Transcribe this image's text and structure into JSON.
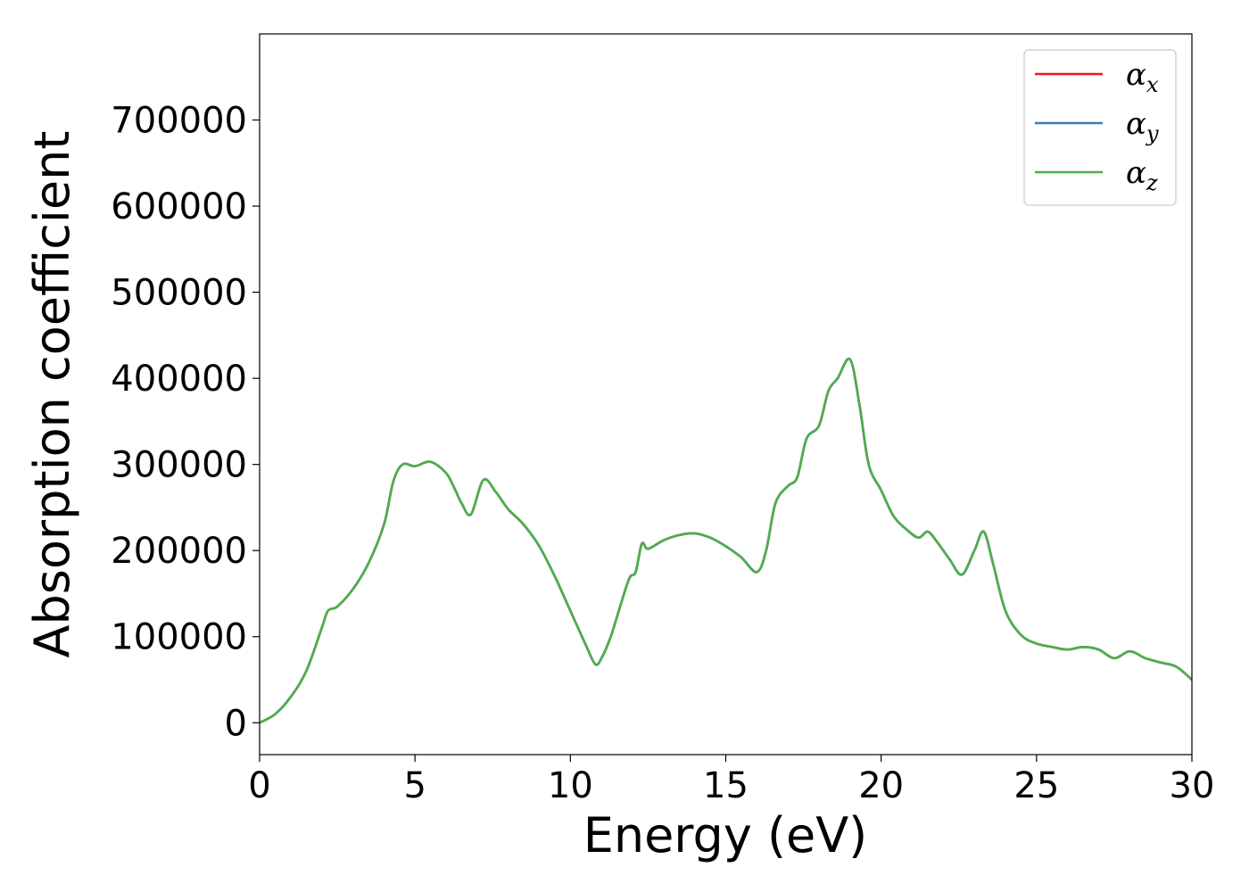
{
  "chart_data": {
    "type": "line",
    "xlabel": "Energy (eV)",
    "ylabel": "Absorption coefficient",
    "xlim": [
      0,
      30
    ],
    "ylim": [
      -37000,
      800000
    ],
    "xticks": [
      "0",
      "5",
      "10",
      "15",
      "20",
      "25",
      "30"
    ],
    "yticks": [
      "0",
      "100000",
      "200000",
      "300000",
      "400000",
      "500000",
      "600000",
      "700000"
    ],
    "grid": false,
    "legend_position": "top-right",
    "x": [
      0,
      0.5,
      1,
      1.5,
      2,
      2.2,
      2.5,
      3,
      3.5,
      4,
      4.3,
      4.6,
      5,
      5.5,
      6,
      6.3,
      6.5,
      6.8,
      7.2,
      7.6,
      8,
      8.5,
      9,
      9.5,
      10,
      10.5,
      10.8,
      11,
      11.3,
      11.6,
      11.9,
      12.1,
      12.3,
      12.5,
      13,
      13.5,
      14,
      14.5,
      15,
      15.5,
      16,
      16.3,
      16.6,
      17,
      17.3,
      17.6,
      18,
      18.3,
      18.6,
      19,
      19.3,
      19.6,
      20,
      20.4,
      20.8,
      21.2,
      21.5,
      21.8,
      22.2,
      22.6,
      23,
      23.3,
      23.6,
      24,
      24.5,
      25,
      25.5,
      26,
      26.5,
      27,
      27.5,
      28,
      28.5,
      29,
      29.5,
      30
    ],
    "series": [
      {
        "name": "αx",
        "color": "#e41a1c",
        "values": [
          0,
          10000,
          30000,
          60000,
          110000,
          130000,
          135000,
          155000,
          185000,
          230000,
          280000,
          300000,
          298000,
          303000,
          290000,
          270000,
          255000,
          242000,
          282000,
          268000,
          248000,
          230000,
          205000,
          170000,
          130000,
          90000,
          68000,
          75000,
          100000,
          135000,
          168000,
          175000,
          208000,
          202000,
          212000,
          218000,
          220000,
          215000,
          205000,
          192000,
          175000,
          200000,
          255000,
          275000,
          285000,
          330000,
          345000,
          385000,
          400000,
          422000,
          370000,
          300000,
          270000,
          240000,
          225000,
          215000,
          222000,
          210000,
          190000,
          172000,
          200000,
          222000,
          185000,
          130000,
          102000,
          92000,
          88000,
          85000,
          88000,
          85000,
          75000,
          83000,
          75000,
          70000,
          65000,
          50000
        ]
      },
      {
        "name": "αy",
        "color": "#377eb8",
        "values": [
          0,
          10000,
          30000,
          60000,
          110000,
          130000,
          135000,
          155000,
          185000,
          230000,
          280000,
          300000,
          298000,
          303000,
          290000,
          270000,
          255000,
          242000,
          282000,
          268000,
          248000,
          230000,
          205000,
          170000,
          130000,
          90000,
          68000,
          75000,
          100000,
          135000,
          168000,
          175000,
          208000,
          202000,
          212000,
          218000,
          220000,
          215000,
          205000,
          192000,
          175000,
          200000,
          255000,
          275000,
          285000,
          330000,
          345000,
          385000,
          400000,
          422000,
          370000,
          300000,
          270000,
          240000,
          225000,
          215000,
          222000,
          210000,
          190000,
          172000,
          200000,
          222000,
          185000,
          130000,
          102000,
          92000,
          88000,
          85000,
          88000,
          85000,
          75000,
          83000,
          75000,
          70000,
          65000,
          50000
        ]
      },
      {
        "name": "αz",
        "color": "#4daf4a",
        "values": [
          0,
          10000,
          30000,
          60000,
          110000,
          130000,
          135000,
          155000,
          185000,
          230000,
          280000,
          300000,
          298000,
          303000,
          290000,
          270000,
          255000,
          242000,
          282000,
          268000,
          248000,
          230000,
          205000,
          170000,
          130000,
          90000,
          68000,
          75000,
          100000,
          135000,
          168000,
          175000,
          208000,
          202000,
          212000,
          218000,
          220000,
          215000,
          205000,
          192000,
          175000,
          200000,
          255000,
          275000,
          285000,
          330000,
          345000,
          385000,
          400000,
          422000,
          370000,
          300000,
          270000,
          240000,
          225000,
          215000,
          222000,
          210000,
          190000,
          172000,
          200000,
          222000,
          185000,
          130000,
          102000,
          92000,
          88000,
          85000,
          88000,
          85000,
          75000,
          83000,
          75000,
          70000,
          65000,
          50000
        ]
      }
    ],
    "legend": [
      {
        "symbol": "α",
        "sub": "x",
        "color": "#e41a1c"
      },
      {
        "symbol": "α",
        "sub": "y",
        "color": "#377eb8"
      },
      {
        "symbol": "α",
        "sub": "z",
        "color": "#4daf4a"
      }
    ]
  }
}
